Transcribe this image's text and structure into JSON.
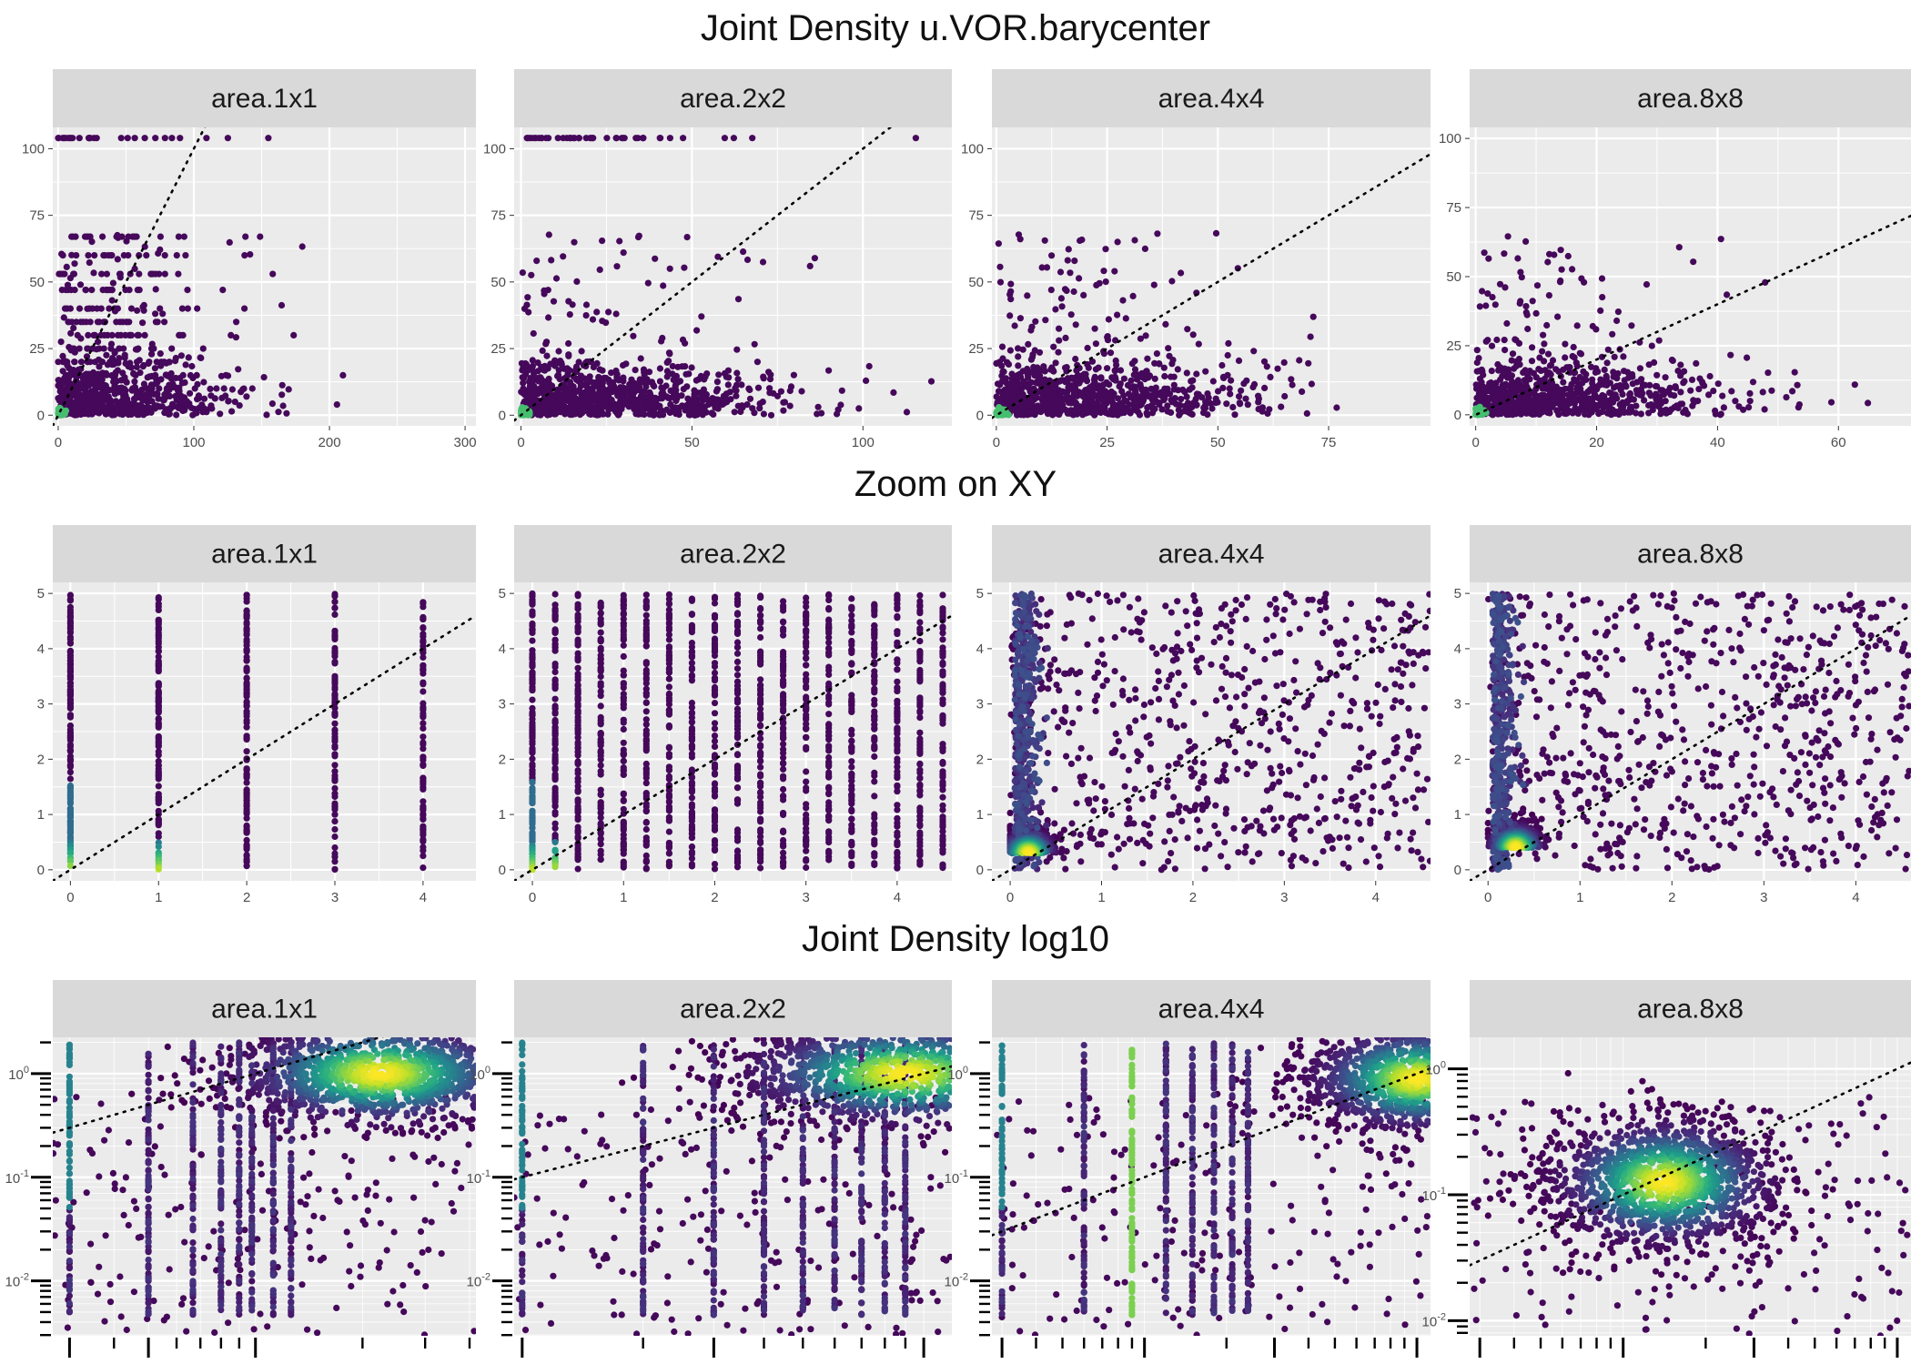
{
  "figure": {
    "row_titles": [
      "Joint Density u.VOR.barycenter",
      "Zoom on XY",
      "Joint Density log10"
    ],
    "panel_titles": [
      "area.1x1",
      "area.2x2",
      "area.4x4",
      "area.8x8"
    ]
  },
  "colors": {
    "panel_background": "#ebebeb",
    "strip_background": "#d9d9d9",
    "gridline": "#ffffff",
    "viridis_low": "#440154",
    "viridis_mid": "#21918c",
    "viridis_high": "#fde725",
    "identity_line": "#000000"
  },
  "chart_data": [
    {
      "type": "scatter",
      "row": 0,
      "panel": "area.1x1",
      "scale": "linear",
      "xlim": [
        -4,
        308
      ],
      "ylim": [
        -4,
        108
      ],
      "x_ticks": [
        "0",
        "100",
        "200",
        "300"
      ],
      "y_ticks": [
        "0",
        "25",
        "50",
        "75",
        "100"
      ],
      "identity_line": true,
      "color_by": "density (viridis)",
      "grid": true,
      "point_cloud": {
        "x_range": [
          0,
          210
        ],
        "y_range": [
          0,
          105
        ],
        "density_peak": [
          0,
          0
        ]
      }
    },
    {
      "type": "scatter",
      "row": 0,
      "panel": "area.2x2",
      "scale": "linear",
      "xlim": [
        -2,
        126
      ],
      "ylim": [
        -4,
        108
      ],
      "x_ticks": [
        "0",
        "50",
        "100"
      ],
      "y_ticks": [
        "0",
        "25",
        "50",
        "75",
        "100"
      ],
      "identity_line": true,
      "color_by": "density (viridis)",
      "grid": true,
      "point_cloud": {
        "x_range": [
          0,
          120
        ],
        "y_range": [
          0,
          105
        ],
        "density_peak": [
          0,
          0
        ]
      }
    },
    {
      "type": "scatter",
      "row": 0,
      "panel": "area.4x4",
      "scale": "linear",
      "xlim": [
        -1,
        98
      ],
      "ylim": [
        -4,
        108
      ],
      "x_ticks": [
        "0",
        "25",
        "50",
        "75"
      ],
      "y_ticks": [
        "0",
        "25",
        "50",
        "75",
        "100"
      ],
      "identity_line": true,
      "color_by": "density (viridis)",
      "grid": true,
      "point_cloud": {
        "x_range": [
          0,
          92
        ],
        "y_range": [
          0,
          105
        ],
        "density_peak": [
          0,
          0
        ]
      }
    },
    {
      "type": "scatter",
      "row": 0,
      "panel": "area.8x8",
      "scale": "linear",
      "xlim": [
        -1,
        72
      ],
      "ylim": [
        -4,
        104
      ],
      "x_ticks": [
        "0",
        "20",
        "40",
        "60"
      ],
      "y_ticks": [
        "0",
        "25",
        "50",
        "75",
        "100"
      ],
      "identity_line": true,
      "color_by": "density (viridis)",
      "grid": true,
      "point_cloud": {
        "x_range": [
          0,
          65
        ],
        "y_range": [
          0,
          100
        ],
        "density_peak": [
          0,
          0
        ]
      }
    },
    {
      "type": "scatter",
      "row": 1,
      "panel": "area.1x1",
      "scale": "linear",
      "xlim": [
        -0.2,
        4.6
      ],
      "ylim": [
        -0.2,
        5.2
      ],
      "x_ticks": [
        "0",
        "1",
        "2",
        "3",
        "4"
      ],
      "y_ticks": [
        "0",
        "1",
        "2",
        "3",
        "4",
        "5"
      ],
      "identity_line": true,
      "color_by": "density (viridis)",
      "grid": true,
      "columns_at_x": [
        0,
        1,
        2,
        3,
        4
      ]
    },
    {
      "type": "scatter",
      "row": 1,
      "panel": "area.2x2",
      "scale": "linear",
      "xlim": [
        -0.2,
        4.6
      ],
      "ylim": [
        -0.2,
        5.2
      ],
      "x_ticks": [
        "0",
        "1",
        "2",
        "3",
        "4"
      ],
      "y_ticks": [
        "0",
        "1",
        "2",
        "3",
        "4",
        "5"
      ],
      "identity_line": true,
      "color_by": "density (viridis)",
      "grid": true,
      "columns_at_x": [
        0,
        0.25,
        0.5,
        0.75,
        1,
        1.25,
        1.5,
        1.75,
        2,
        2.25,
        2.5,
        2.75,
        3,
        3.25,
        3.5,
        3.75,
        4,
        4.25,
        4.5
      ]
    },
    {
      "type": "scatter",
      "row": 1,
      "panel": "area.4x4",
      "scale": "linear",
      "xlim": [
        -0.2,
        4.6
      ],
      "ylim": [
        -0.2,
        5.2
      ],
      "x_ticks": [
        "0",
        "1",
        "2",
        "3",
        "4"
      ],
      "y_ticks": [
        "0",
        "1",
        "2",
        "3",
        "4",
        "5"
      ],
      "identity_line": true,
      "color_by": "density (viridis)",
      "grid": true,
      "density_peak": [
        0.2,
        0.3
      ]
    },
    {
      "type": "scatter",
      "row": 1,
      "panel": "area.8x8",
      "scale": "linear",
      "xlim": [
        -0.2,
        4.6
      ],
      "ylim": [
        -0.2,
        5.2
      ],
      "x_ticks": [
        "0",
        "1",
        "2",
        "3",
        "4"
      ],
      "y_ticks": [
        "0",
        "1",
        "2",
        "3",
        "4",
        "5"
      ],
      "identity_line": true,
      "color_by": "density (viridis)",
      "grid": true,
      "density_peak": [
        0.3,
        0.4
      ]
    },
    {
      "type": "scatter",
      "row": 2,
      "panel": "area.1x1",
      "scale": "log10",
      "xlim": [
        -0.57,
        0.62
      ],
      "ylim": [
        -2.53,
        0.35
      ],
      "x_ticks": [
        {
          "base": "10",
          "exp": "-0.5228787",
          "value": -0.5229
        },
        {
          "base": "10",
          "exp": "-0.30103",
          "value": -0.301
        },
        {
          "base": "10",
          "exp": "0",
          "value": 0
        }
      ],
      "y_ticks": [
        {
          "base": "10",
          "exp": "-2",
          "value": -2
        },
        {
          "base": "10",
          "exp": "-1",
          "value": -1
        },
        {
          "base": "10",
          "exp": "0",
          "value": 0
        }
      ],
      "identity_line": true,
      "color_by": "density (viridis)",
      "grid": true,
      "density_peak": [
        0.35,
        0.0
      ]
    },
    {
      "type": "scatter",
      "row": 2,
      "panel": "area.2x2",
      "scale": "log10",
      "xlim": [
        -1.02,
        0.07
      ],
      "ylim": [
        -2.53,
        0.35
      ],
      "x_ticks": [
        {
          "base": "10",
          "exp": "-1",
          "value": -1
        },
        {
          "base": "10",
          "exp": "-0.5228787",
          "value": -0.5229
        },
        {
          "base": "10",
          "exp": "0",
          "value": 0
        }
      ],
      "y_ticks": [
        {
          "base": "10",
          "exp": "-2",
          "value": -2
        },
        {
          "base": "10",
          "exp": "-1",
          "value": -1
        },
        {
          "base": "10",
          "exp": "0",
          "value": 0
        }
      ],
      "identity_line": true,
      "color_by": "density (viridis)",
      "grid": true,
      "density_peak": [
        -0.05,
        0.0
      ]
    },
    {
      "type": "scatter",
      "row": 2,
      "panel": "area.4x4",
      "scale": "log10",
      "xlim": [
        -1.56,
        0.05
      ],
      "ylim": [
        -2.53,
        0.35
      ],
      "x_ticks": [
        {
          "base": "10",
          "exp": "-1.522879",
          "value": -1.5229
        },
        {
          "base": "10",
          "exp": "-1",
          "value": -1
        },
        {
          "base": "10",
          "exp": "-0.5228787",
          "value": -0.5229
        },
        {
          "base": "10",
          "exp": "0",
          "value": 0
        }
      ],
      "y_ticks": [
        {
          "base": "10",
          "exp": "-2",
          "value": -2
        },
        {
          "base": "10",
          "exp": "-1",
          "value": -1
        },
        {
          "base": "10",
          "exp": "0",
          "value": 0
        }
      ],
      "identity_line": true,
      "color_by": "density (viridis)",
      "grid": true,
      "density_peak": [
        0.0,
        -0.05
      ]
    },
    {
      "type": "scatter",
      "row": 2,
      "panel": "area.8x8",
      "scale": "log10",
      "xlim": [
        -1.56,
        0.05
      ],
      "ylim": [
        -2.12,
        0.25
      ],
      "x_ticks": [
        {
          "base": "10",
          "exp": "-1.522879",
          "value": -1.5229
        },
        {
          "base": "10",
          "exp": "-1",
          "value": -1
        },
        {
          "base": "10",
          "exp": "-0.5228787",
          "value": -0.5229
        },
        {
          "base": "10",
          "exp": "0",
          "value": 0
        }
      ],
      "y_ticks": [
        {
          "base": "10",
          "exp": "-2",
          "value": -2
        },
        {
          "base": "10",
          "exp": "-1",
          "value": -1
        },
        {
          "base": "10",
          "exp": "0",
          "value": 0
        }
      ],
      "identity_line": true,
      "color_by": "density (viridis)",
      "grid": true,
      "density_peak": [
        -0.85,
        -0.9
      ]
    }
  ]
}
